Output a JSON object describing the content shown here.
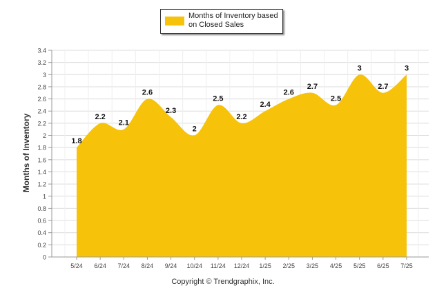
{
  "chart_data": {
    "type": "area",
    "title": "",
    "xlabel": "",
    "ylabel": "Months of Inventory",
    "categories": [
      "5/24",
      "6/24",
      "7/24",
      "8/24",
      "9/24",
      "10/24",
      "11/24",
      "12/24",
      "1/25",
      "2/25",
      "3/25",
      "4/25",
      "5/25",
      "6/25",
      "7/25"
    ],
    "series": [
      {
        "name": "Months of Inventory based on Closed Sales",
        "values": [
          1.8,
          2.2,
          2.1,
          2.6,
          2.3,
          2.0,
          2.5,
          2.2,
          2.4,
          2.6,
          2.7,
          2.5,
          3.0,
          2.7,
          3.0
        ],
        "data_labels": [
          "1.8",
          "2.2",
          "2.1",
          "2.6",
          "2.3",
          "2",
          "2.5",
          "2.2",
          "2.4",
          "2.6",
          "2.7",
          "2.5",
          "3",
          "2.7",
          "3"
        ]
      }
    ],
    "ylim": [
      0,
      3.4
    ],
    "yticks": [
      "0",
      "0.2",
      "0.4",
      "0.6",
      "0.8",
      "1",
      "1.2",
      "1.4",
      "1.6",
      "1.8",
      "2",
      "2.2",
      "2.4",
      "2.6",
      "2.8",
      "3",
      "3.2",
      "3.4"
    ],
    "grid": true,
    "legend_position": "top",
    "color": "#f6c20a"
  },
  "legend": {
    "label": "Months of Inventory based on Closed Sales"
  },
  "footer": {
    "copyright": "Copyright © Trendgraphix, Inc."
  }
}
